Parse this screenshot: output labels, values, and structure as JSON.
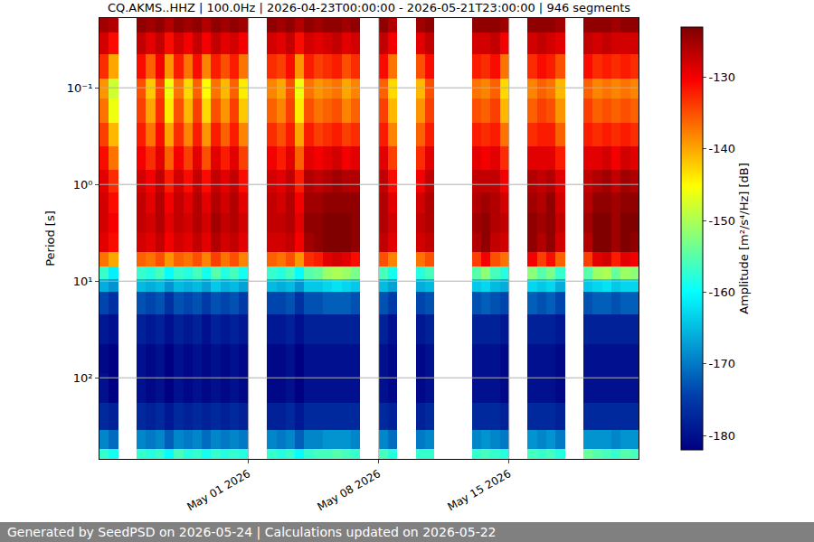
{
  "chart_data": {
    "type": "heatmap",
    "title": "CQ.AKMS..HHZ | 100.0Hz | 2026-04-23T00:00:00 - 2026-05-21T23:00:00 | 946 segments",
    "footer": "Generated by SeedPSD on 2026-05-24 | Calculations updated on 2026-05-22",
    "y_label": "Period [s]",
    "log": "y",
    "grid": true,
    "xlim": [
      "2026-04-23 00:00:00",
      "2026-05-21 23:00:00"
    ],
    "xticks": [
      {
        "value": "2026-05-01",
        "label": "May 01 2026"
      },
      {
        "value": "2026-05-08",
        "label": "May 08 2026"
      },
      {
        "value": "2026-05-15",
        "label": "May 15 2026"
      }
    ],
    "ylim": [
      690,
      0.019
    ],
    "yticks": [
      {
        "value": 0.1,
        "label": "10⁻¹"
      },
      {
        "value": 1,
        "label": "10⁰"
      },
      {
        "value": 10,
        "label": "10¹"
      },
      {
        "value": 100,
        "label": "10²"
      }
    ],
    "colorbar": {
      "title": "Amplitude [m²/s⁴/Hz] [dB]",
      "range": [
        -182,
        -123
      ],
      "ticks": [
        -180,
        -170,
        -160,
        -150,
        -140,
        -130
      ]
    },
    "x": [
      "2026-04-23 06:00",
      "2026-04-23 18:00",
      "2026-04-24 06:00",
      "2026-04-24 18:00",
      "2026-04-25 06:00",
      "2026-04-25 18:00",
      "2026-04-26 06:00",
      "2026-04-26 18:00",
      "2026-04-27 06:00",
      "2026-04-27 18:00",
      "2026-04-28 06:00",
      "2026-04-28 18:00",
      "2026-04-29 06:00",
      "2026-04-29 18:00",
      "2026-04-30 06:00",
      "2026-04-30 18:00",
      "2026-05-01 06:00",
      "2026-05-01 18:00",
      "2026-05-02 06:00",
      "2026-05-02 18:00",
      "2026-05-03 06:00",
      "2026-05-03 18:00",
      "2026-05-04 06:00",
      "2026-05-04 18:00",
      "2026-05-05 06:00",
      "2026-05-05 18:00",
      "2026-05-06 06:00",
      "2026-05-06 18:00",
      "2026-05-07 06:00",
      "2026-05-07 18:00",
      "2026-05-08 06:00",
      "2026-05-08 18:00",
      "2026-05-09 06:00",
      "2026-05-09 18:00",
      "2026-05-10 06:00",
      "2026-05-10 18:00",
      "2026-05-11 06:00",
      "2026-05-11 18:00",
      "2026-05-12 06:00",
      "2026-05-12 18:00",
      "2026-05-13 06:00",
      "2026-05-13 18:00",
      "2026-05-14 06:00",
      "2026-05-14 18:00",
      "2026-05-15 06:00",
      "2026-05-15 18:00",
      "2026-05-16 06:00",
      "2026-05-16 18:00",
      "2026-05-17 06:00",
      "2026-05-17 18:00",
      "2026-05-18 06:00",
      "2026-05-18 18:00",
      "2026-05-19 06:00",
      "2026-05-19 18:00",
      "2026-05-20 06:00",
      "2026-05-20 18:00",
      "2026-05-21 06:00",
      "2026-05-21 18:00"
    ],
    "period_bins": [
      0.019,
      0.027,
      0.045,
      0.08,
      0.13,
      0.23,
      0.4,
      0.7,
      1.2,
      2,
      3.2,
      5,
      7,
      9.5,
      13,
      22,
      45,
      90,
      180,
      350,
      550,
      690
    ],
    "cells": [
      [
        -125,
        -128,
        -133,
        -139,
        -137,
        -134,
        -131,
        -129,
        -128,
        -128,
        -129,
        -137,
        -157,
        -166,
        -174,
        -179,
        -181,
        -180,
        -177,
        -169,
        -157
      ],
      [
        -126,
        -131,
        -140,
        -148,
        -146,
        -141,
        -137,
        -133,
        -131,
        -130,
        -131,
        -140,
        -161,
        -168,
        -176,
        -180,
        -182,
        -182,
        -178,
        -171,
        -159
      ],
      null,
      null,
      [
        -124,
        -127,
        -131,
        -135,
        -134,
        -132,
        -130,
        -128,
        -127,
        -127,
        -128,
        -136,
        -157,
        -165,
        -173,
        -178,
        -180,
        -180,
        -177,
        -169,
        -157
      ],
      [
        -125,
        -129,
        -136,
        -142,
        -140,
        -137,
        -133,
        -130,
        -129,
        -128,
        -129,
        -137,
        -158,
        -166,
        -174,
        -179,
        -181,
        -181,
        -178,
        -170,
        -158
      ],
      [
        -124,
        -127,
        -130,
        -134,
        -133,
        -131,
        -129,
        -127,
        -126,
        -126,
        -127,
        -135,
        -156,
        -165,
        -173,
        -178,
        -180,
        -180,
        -177,
        -169,
        -157
      ],
      [
        -126,
        -131,
        -139,
        -146,
        -144,
        -140,
        -136,
        -132,
        -130,
        -129,
        -130,
        -139,
        -160,
        -168,
        -176,
        -180,
        -182,
        -182,
        -179,
        -172,
        -160
      ],
      [
        -124,
        -128,
        -132,
        -137,
        -135,
        -133,
        -130,
        -128,
        -127,
        -127,
        -128,
        -136,
        -157,
        -165,
        -173,
        -178,
        -180,
        -180,
        -177,
        -169,
        -156
      ],
      [
        -125,
        -130,
        -137,
        -143,
        -141,
        -138,
        -134,
        -131,
        -129,
        -128,
        -129,
        -137,
        -158,
        -166,
        -174,
        -179,
        -181,
        -181,
        -178,
        -170,
        -158
      ],
      [
        -124,
        -127,
        -131,
        -136,
        -134,
        -132,
        -129,
        -127,
        -126,
        -126,
        -127,
        -135,
        -156,
        -165,
        -173,
        -178,
        -180,
        -180,
        -177,
        -169,
        -157
      ],
      [
        -126,
        -130,
        -138,
        -145,
        -143,
        -139,
        -135,
        -131,
        -129,
        -128,
        -129,
        -138,
        -159,
        -167,
        -175,
        -180,
        -181,
        -181,
        -178,
        -171,
        -159
      ],
      [
        -124,
        -127,
        -132,
        -137,
        -135,
        -132,
        -129,
        -127,
        -126,
        -125,
        -126,
        -134,
        -155,
        -164,
        -173,
        -178,
        -180,
        -180,
        -177,
        -169,
        -157
      ],
      [
        -125,
        -129,
        -135,
        -141,
        -139,
        -136,
        -132,
        -129,
        -128,
        -127,
        -128,
        -137,
        -158,
        -166,
        -174,
        -179,
        -181,
        -181,
        -178,
        -170,
        -158
      ],
      [
        -124,
        -128,
        -132,
        -136,
        -134,
        -132,
        -129,
        -127,
        -126,
        -126,
        -127,
        -135,
        -156,
        -165,
        -173,
        -178,
        -180,
        -180,
        -177,
        -169,
        -157
      ],
      [
        -125,
        -130,
        -137,
        -144,
        -142,
        -138,
        -134,
        -131,
        -129,
        -128,
        -129,
        -138,
        -159,
        -167,
        -175,
        -179,
        -181,
        -181,
        -178,
        -170,
        -158
      ],
      null,
      null,
      [
        -124,
        -128,
        -133,
        -138,
        -136,
        -133,
        -130,
        -128,
        -127,
        -127,
        -128,
        -136,
        -157,
        -165,
        -174,
        -179,
        -181,
        -181,
        -178,
        -169,
        -157
      ],
      [
        -125,
        -129,
        -134,
        -140,
        -138,
        -135,
        -132,
        -129,
        -128,
        -127,
        -128,
        -137,
        -158,
        -166,
        -174,
        -179,
        -181,
        -181,
        -178,
        -170,
        -158
      ],
      [
        -124,
        -127,
        -131,
        -135,
        -134,
        -132,
        -129,
        -127,
        -126,
        -126,
        -127,
        -135,
        -156,
        -165,
        -173,
        -178,
        -180,
        -180,
        -177,
        -169,
        -157
      ],
      [
        -126,
        -131,
        -139,
        -146,
        -144,
        -140,
        -136,
        -132,
        -130,
        -129,
        -130,
        -139,
        -160,
        -168,
        -176,
        -180,
        -182,
        -182,
        -179,
        -172,
        -160
      ],
      [
        -124,
        -128,
        -132,
        -137,
        -135,
        -132,
        -129,
        -126,
        -125,
        -124,
        -125,
        -133,
        -155,
        -164,
        -173,
        -178,
        -180,
        -180,
        -177,
        -169,
        -157
      ],
      [
        -125,
        -129,
        -134,
        -139,
        -137,
        -134,
        -130,
        -127,
        -125,
        -124,
        -124,
        -132,
        -154,
        -164,
        -173,
        -178,
        -180,
        -180,
        -177,
        -169,
        -156
      ],
      [
        -124,
        -128,
        -133,
        -138,
        -136,
        -133,
        -129,
        -126,
        -124,
        -123,
        -123,
        -129,
        -151,
        -163,
        -172,
        -178,
        -180,
        -180,
        -177,
        -168,
        -156
      ],
      [
        -124,
        -127,
        -132,
        -137,
        -135,
        -132,
        -128,
        -125,
        -124,
        -123,
        -123,
        -128,
        -150,
        -162,
        -172,
        -178,
        -180,
        -180,
        -177,
        -168,
        -155
      ],
      [
        -125,
        -129,
        -135,
        -140,
        -138,
        -134,
        -130,
        -126,
        -124,
        -123,
        -123,
        -129,
        -151,
        -163,
        -172,
        -178,
        -180,
        -180,
        -177,
        -168,
        -156
      ],
      [
        -124,
        -128,
        -133,
        -138,
        -136,
        -133,
        -129,
        -126,
        -124,
        -124,
        -124,
        -131,
        -153,
        -164,
        -173,
        -178,
        -180,
        -180,
        -177,
        -169,
        -157
      ],
      null,
      null,
      [
        -124,
        -127,
        -131,
        -136,
        -134,
        -132,
        -129,
        -127,
        -126,
        -126,
        -127,
        -135,
        -156,
        -165,
        -173,
        -178,
        -180,
        -180,
        -177,
        -169,
        -156
      ],
      [
        -126,
        -130,
        -137,
        -143,
        -141,
        -138,
        -134,
        -131,
        -129,
        -128,
        -129,
        -138,
        -159,
        -167,
        -175,
        -180,
        -181,
        -181,
        -178,
        -171,
        -158
      ],
      null,
      null,
      [
        -125,
        -129,
        -135,
        -141,
        -139,
        -136,
        -133,
        -130,
        -128,
        -127,
        -128,
        -137,
        -158,
        -166,
        -174,
        -179,
        -181,
        -181,
        -178,
        -170,
        -157
      ],
      [
        -124,
        -127,
        -131,
        -135,
        -134,
        -132,
        -129,
        -127,
        -126,
        -126,
        -127,
        -135,
        -156,
        -165,
        -173,
        -178,
        -180,
        -180,
        -177,
        -169,
        -157
      ],
      null,
      null,
      null,
      null,
      [
        -124,
        -128,
        -132,
        -137,
        -135,
        -132,
        -129,
        -127,
        -126,
        -125,
        -126,
        -134,
        -155,
        -164,
        -173,
        -178,
        -180,
        -180,
        -177,
        -169,
        -157
      ],
      [
        -124,
        -128,
        -133,
        -138,
        -136,
        -133,
        -130,
        -127,
        -125,
        -124,
        -124,
        -130,
        -152,
        -163,
        -172,
        -178,
        -180,
        -180,
        -177,
        -168,
        -156
      ],
      [
        -124,
        -127,
        -131,
        -136,
        -134,
        -132,
        -129,
        -127,
        -126,
        -126,
        -127,
        -135,
        -156,
        -165,
        -173,
        -178,
        -180,
        -180,
        -177,
        -169,
        -157
      ],
      [
        -125,
        -130,
        -137,
        -143,
        -141,
        -137,
        -133,
        -130,
        -128,
        -127,
        -128,
        -137,
        -158,
        -166,
        -174,
        -179,
        -181,
        -181,
        -178,
        -170,
        -158
      ],
      null,
      null,
      [
        -124,
        -128,
        -133,
        -138,
        -136,
        -133,
        -129,
        -126,
        -125,
        -124,
        -124,
        -130,
        -152,
        -163,
        -172,
        -178,
        -180,
        -180,
        -177,
        -168,
        -156
      ],
      [
        -124,
        -127,
        -131,
        -136,
        -134,
        -132,
        -129,
        -127,
        -126,
        -125,
        -126,
        -134,
        -155,
        -164,
        -173,
        -178,
        -180,
        -180,
        -177,
        -169,
        -157
      ],
      [
        -124,
        -128,
        -132,
        -137,
        -135,
        -132,
        -129,
        -126,
        -124,
        -124,
        -124,
        -131,
        -153,
        -163,
        -172,
        -178,
        -180,
        -180,
        -177,
        -168,
        -156
      ],
      [
        -125,
        -129,
        -135,
        -141,
        -139,
        -136,
        -132,
        -129,
        -128,
        -127,
        -128,
        -136,
        -157,
        -166,
        -174,
        -179,
        -181,
        -181,
        -178,
        -170,
        -158
      ],
      null,
      null,
      [
        -124,
        -127,
        -131,
        -136,
        -134,
        -132,
        -129,
        -127,
        -126,
        -125,
        -126,
        -134,
        -155,
        -164,
        -173,
        -178,
        -180,
        -180,
        -177,
        -168,
        -154
      ],
      [
        -124,
        -128,
        -133,
        -138,
        -136,
        -133,
        -129,
        -126,
        -124,
        -123,
        -123,
        -129,
        -151,
        -163,
        -172,
        -178,
        -180,
        -180,
        -177,
        -168,
        -155
      ],
      [
        -124,
        -127,
        -132,
        -137,
        -135,
        -132,
        -128,
        -125,
        -124,
        -123,
        -123,
        -128,
        -150,
        -162,
        -172,
        -178,
        -180,
        -180,
        -177,
        -168,
        -156
      ],
      [
        -125,
        -128,
        -133,
        -138,
        -136,
        -133,
        -130,
        -127,
        -125,
        -125,
        -125,
        -132,
        -154,
        -164,
        -173,
        -178,
        -180,
        -180,
        -177,
        -169,
        -157
      ],
      [
        -124,
        -128,
        -132,
        -137,
        -135,
        -132,
        -128,
        -125,
        -124,
        -123,
        -123,
        -129,
        -151,
        -163,
        -172,
        -178,
        -180,
        -180,
        -177,
        -168,
        -155
      ],
      [
        -124,
        -128,
        -133,
        -138,
        -136,
        -133,
        -129,
        -126,
        -124,
        -123,
        -124,
        -130,
        -152,
        -163,
        -172,
        -178,
        -180,
        -180,
        -177,
        -168,
        -156
      ]
    ]
  }
}
